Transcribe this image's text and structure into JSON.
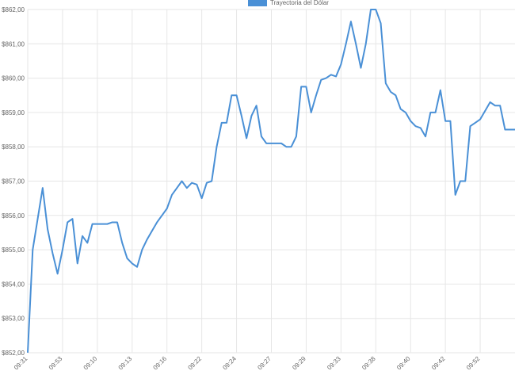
{
  "chart_data": {
    "type": "line",
    "categories": [
      "09:31",
      null,
      null,
      null,
      null,
      null,
      null,
      "09:53",
      null,
      null,
      null,
      null,
      null,
      null,
      "09:10",
      null,
      null,
      null,
      null,
      null,
      null,
      "09:13",
      null,
      null,
      null,
      null,
      null,
      null,
      "09:16",
      null,
      null,
      null,
      null,
      null,
      null,
      "09:22",
      null,
      null,
      null,
      null,
      null,
      null,
      "09:24",
      null,
      null,
      null,
      null,
      null,
      null,
      "09:27",
      null,
      null,
      null,
      null,
      null,
      null,
      "09:29",
      null,
      null,
      null,
      null,
      null,
      null,
      "09:33",
      null,
      null,
      null,
      null,
      null,
      null,
      "09:38",
      null,
      null,
      null,
      null,
      null,
      null,
      "09:40",
      null,
      null,
      null,
      null,
      null,
      null,
      "09:42",
      null,
      null,
      null,
      null,
      null,
      null,
      "09:52",
      null,
      null,
      null,
      null,
      null,
      null,
      null
    ],
    "series": [
      {
        "name": "Trayectoria del Dólar",
        "color": "#4a90d6",
        "values": [
          852.0,
          855.0,
          855.9,
          856.8,
          855.6,
          854.9,
          854.3,
          855.0,
          855.8,
          855.9,
          854.6,
          855.4,
          855.2,
          855.75,
          855.75,
          855.75,
          855.75,
          855.8,
          855.8,
          855.2,
          854.75,
          854.6,
          854.5,
          855.0,
          855.3,
          855.55,
          855.8,
          856.0,
          856.2,
          856.6,
          856.8,
          857.0,
          856.8,
          856.95,
          856.9,
          856.5,
          856.95,
          857.0,
          858.0,
          858.7,
          858.7,
          859.5,
          859.5,
          858.9,
          858.25,
          858.9,
          859.2,
          858.3,
          858.1,
          858.1,
          858.1,
          858.1,
          858.0,
          858.0,
          858.3,
          859.75,
          859.75,
          859.0,
          859.5,
          859.95,
          860.0,
          860.1,
          860.05,
          860.4,
          861.0,
          861.65,
          861.0,
          860.3,
          861.0,
          862.0,
          862.0,
          861.6,
          859.85,
          859.6,
          859.5,
          859.1,
          859.0,
          858.75,
          858.6,
          858.55,
          858.3,
          859.0,
          859.0,
          859.65,
          858.75,
          858.75,
          856.6,
          857.0,
          857.0,
          858.6,
          858.7,
          858.8,
          859.05,
          859.3,
          859.2,
          859.2,
          858.5,
          858.5,
          858.5
        ]
      }
    ],
    "ylim": [
      852,
      862
    ],
    "yticks": [
      {
        "value": 852,
        "label": "$852,00"
      },
      {
        "value": 853,
        "label": "$853,00"
      },
      {
        "value": 854,
        "label": "$854,00"
      },
      {
        "value": 855,
        "label": "$855,00"
      },
      {
        "value": 856,
        "label": "$856,00"
      },
      {
        "value": 857,
        "label": "$857,00"
      },
      {
        "value": 858,
        "label": "$858,00"
      },
      {
        "value": 859,
        "label": "$859,00"
      },
      {
        "value": 860,
        "label": "$860,00"
      },
      {
        "value": 861,
        "label": "$861,00"
      },
      {
        "value": 862,
        "label": "$862,00"
      }
    ],
    "grid": true
  }
}
